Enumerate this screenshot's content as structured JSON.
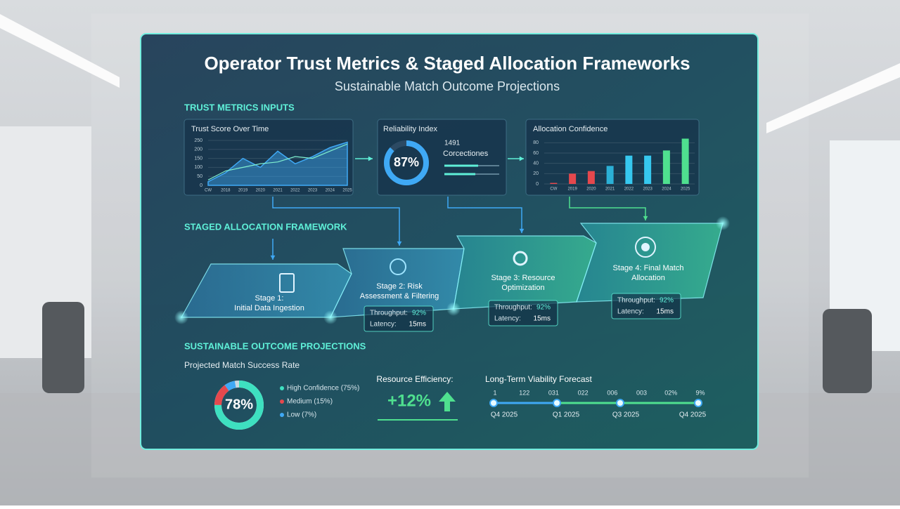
{
  "header": {
    "title": "Operator Trust Metrics & Staged Allocation Frameworks",
    "subtitle": "Sustainable Match Outcome Projections"
  },
  "inputs": {
    "heading": "TRUST METRICS INPUTS",
    "trust_score": {
      "title": "Trust Score Over Time",
      "ylim": [
        0,
        250
      ],
      "yticks": [
        250,
        200,
        150,
        100,
        50,
        0
      ],
      "categories": [
        "CW",
        "2018",
        "2019",
        "2020",
        "2021",
        "2022",
        "2023",
        "2024",
        "2025"
      ],
      "series": [
        {
          "color": "#3fa9f5",
          "values": [
            20,
            70,
            150,
            100,
            190,
            120,
            160,
            210,
            240
          ]
        },
        {
          "color": "#7ff0d0",
          "values": [
            30,
            80,
            100,
            120,
            130,
            160,
            150,
            190,
            230
          ]
        }
      ]
    },
    "reliability": {
      "title": "Reliability Index",
      "value": 87,
      "value_label": "87%",
      "note": "1491",
      "caption": "Corcectiones"
    },
    "allocation": {
      "title": "Allocation Confidence",
      "ylim": [
        0,
        90
      ],
      "yticks": [
        80,
        60,
        40,
        20,
        0
      ],
      "categories": [
        "CW",
        "2019",
        "2020",
        "2021",
        "2022",
        "2023",
        "2024",
        "2025"
      ],
      "values": [
        2,
        20,
        25,
        35,
        55,
        55,
        65,
        88
      ],
      "colors": [
        "#e5484d",
        "#e5484d",
        "#e5484d",
        "#2bb0d6",
        "#36c8ef",
        "#36c8ef",
        "#4fe08f",
        "#4fe08f"
      ]
    }
  },
  "framework": {
    "heading": "STAGED ALLOCATION FRAMEWORK",
    "stages": [
      {
        "title": [
          "Stage 1:",
          "Initial Data Ingestion"
        ]
      },
      {
        "title": [
          "Stage 2: Risk",
          "Assessment & Filtering"
        ],
        "metrics": [
          {
            "label": "Throughput:",
            "value": "92%"
          },
          {
            "label": "Latency:",
            "value": "15ms"
          }
        ]
      },
      {
        "title": [
          "Stage 3: Resource",
          "Optimization"
        ],
        "metrics": [
          {
            "label": "Throughput:",
            "value": "92%"
          },
          {
            "label": "Latency:",
            "value": "15ms"
          }
        ]
      },
      {
        "title": [
          "Stage 4: Final Match",
          "Allocation"
        ],
        "metrics": [
          {
            "label": "Throughput:",
            "value": "92%"
          },
          {
            "label": "Latency:",
            "value": "15ms"
          }
        ]
      }
    ]
  },
  "outcomes": {
    "heading": "SUSTAINABLE OUTCOME PROJECTIONS",
    "success": {
      "title": "Projected Match Success Rate",
      "center_label": "78%",
      "segments": [
        {
          "name": "High Confidence (75%)",
          "value": 75,
          "color": "#3ee0c0"
        },
        {
          "name": "Medium (15%)",
          "value": 15,
          "color": "#e5484d"
        },
        {
          "name": "Low (7%)",
          "value": 7,
          "color": "#3fa9f5"
        }
      ]
    },
    "efficiency": {
      "title": "Resource Efficiency:",
      "value": "+12%"
    },
    "forecast": {
      "title": "Long-Term Viability Forecast",
      "top_labels": [
        "1",
        "122",
        "031",
        "022",
        "006",
        "003",
        "02%",
        "9%"
      ],
      "milestones": [
        "Q4 2025",
        "Q1 2025",
        "Q3 2025",
        "Q4 2025"
      ]
    }
  }
}
